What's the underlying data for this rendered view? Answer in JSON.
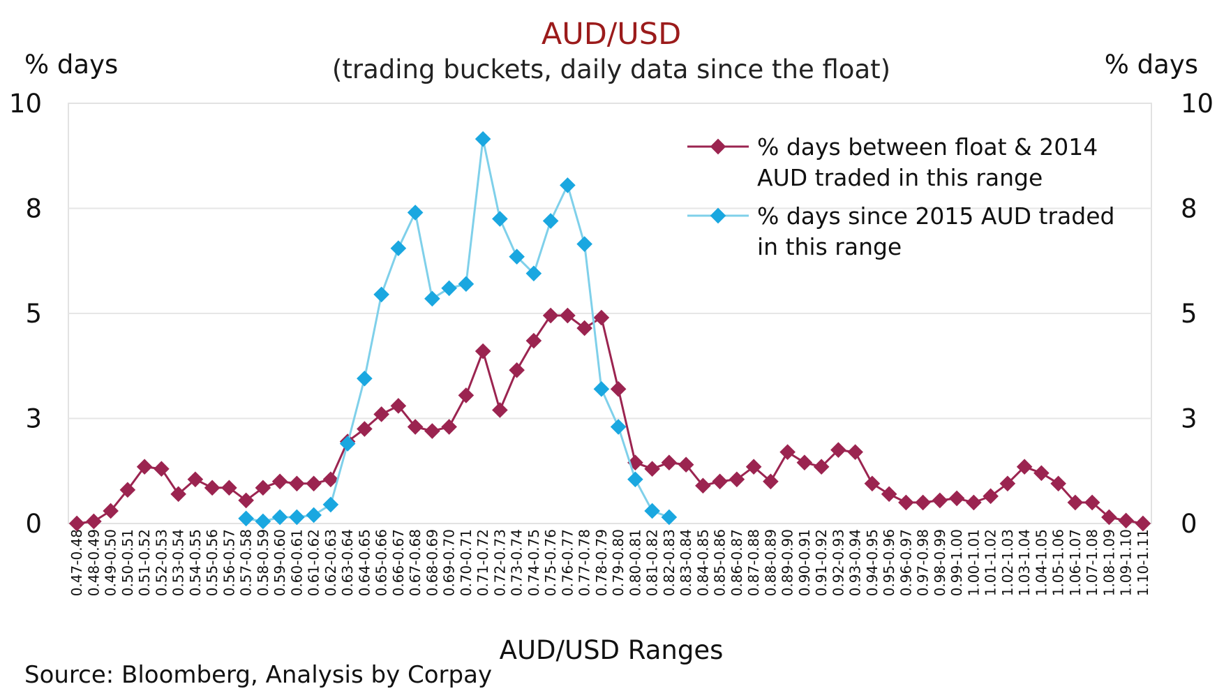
{
  "chart_data": {
    "type": "line",
    "title": "AUD/USD",
    "subtitle": "(trading buckets, daily data since the float)",
    "ylabel_left": "% days",
    "ylabel_right": "% days",
    "xlabel": "AUD/USD Ranges",
    "source": "Source: Bloomberg, Analysis by Corpay",
    "ylim": [
      0,
      10
    ],
    "y_ticks": [
      {
        "value": 0,
        "label": "0"
      },
      {
        "value": 2.5,
        "label": "3"
      },
      {
        "value": 5,
        "label": "5"
      },
      {
        "value": 7.5,
        "label": "8"
      },
      {
        "value": 10,
        "label": "10"
      }
    ],
    "grid": true,
    "legend_position": "top-right",
    "categories": [
      "0.47-0.48",
      "0.48-0.49",
      "0.49-0.50",
      "0.50-0.51",
      "0.51-0.52",
      "0.52-0.53",
      "0.53-0.54",
      "0.54-0.55",
      "0.55-0.56",
      "0.56-0.57",
      "0.57-0.58",
      "0.58-0.59",
      "0.59-0.60",
      "0.60-0.61",
      "0.61-0.62",
      "0.62-0.63",
      "0.63-0.64",
      "0.64-0.65",
      "0.65-0.66",
      "0.66-0.67",
      "0.67-0.68",
      "0.68-0.69",
      "0.69-0.70",
      "0.70-0.71",
      "0.71-0.72",
      "0.72-0.73",
      "0.73-0.74",
      "0.74-0.75",
      "0.75-0.76",
      "0.76-0.77",
      "0.77-0.78",
      "0.78-0.79",
      "0.79-0.80",
      "0.80-0.81",
      "0.81-0.82",
      "0.82-0.83",
      "0.83-0.84",
      "0.84-0.85",
      "0.85-0.86",
      "0.86-0.87",
      "0.87-0.88",
      "0.88-0.89",
      "0.89-0.90",
      "0.90-0.91",
      "0.91-0.92",
      "0.92-0.93",
      "0.93-0.94",
      "0.94-0.95",
      "0.95-0.96",
      "0.96-0.97",
      "0.97-0.98",
      "0.98-0.99",
      "0.99-1.00",
      "1.00-1.01",
      "1.01-1.02",
      "1.02-1.03",
      "1.03-1.04",
      "1.04-1.05",
      "1.05-1.06",
      "1.06-1.07",
      "1.07-1.08",
      "1.08-1.09",
      "1.09-1.10",
      "1.10-1.11"
    ],
    "series": [
      {
        "name": "% days between float & 2014 AUD traded in this range",
        "color": "#9b2450",
        "values": [
          0.0,
          0.05,
          0.3,
          0.8,
          1.35,
          1.3,
          0.7,
          1.05,
          0.85,
          0.85,
          0.55,
          0.85,
          1.0,
          0.95,
          0.95,
          1.05,
          1.95,
          2.25,
          2.6,
          2.8,
          2.3,
          2.2,
          2.3,
          3.05,
          4.1,
          2.7,
          3.65,
          4.35,
          4.95,
          4.95,
          4.65,
          4.9,
          3.2,
          1.45,
          1.3,
          1.45,
          1.4,
          0.9,
          1.0,
          1.05,
          1.35,
          1.0,
          1.7,
          1.45,
          1.35,
          1.75,
          1.7,
          0.95,
          0.7,
          0.5,
          0.5,
          0.55,
          0.6,
          0.5,
          0.65,
          0.95,
          1.35,
          1.2,
          0.95,
          0.5,
          0.5,
          0.15,
          0.07,
          0.0
        ]
      },
      {
        "name": "% days since 2015 AUD traded in this range",
        "color": "#7fd0ea",
        "marker_color": "#1aa7e0",
        "values": [
          null,
          null,
          null,
          null,
          null,
          null,
          null,
          null,
          null,
          null,
          0.12,
          0.05,
          0.15,
          0.15,
          0.2,
          0.45,
          1.9,
          3.45,
          5.45,
          6.55,
          7.4,
          5.35,
          5.6,
          5.7,
          9.15,
          7.25,
          6.35,
          5.95,
          7.2,
          8.05,
          6.65,
          3.2,
          2.3,
          1.05,
          0.3,
          0.15,
          null,
          null,
          null,
          null,
          null,
          null,
          null,
          null,
          null,
          null,
          null,
          null,
          null,
          null,
          null,
          null,
          null,
          null,
          null,
          null,
          null,
          null,
          null,
          null,
          null,
          null,
          null,
          null
        ]
      }
    ],
    "legend": [
      {
        "line1": "% days between float & 2014",
        "line2": "AUD traded in this range"
      },
      {
        "line1": "% days since 2015 AUD traded",
        "line2": "in this range"
      }
    ]
  }
}
